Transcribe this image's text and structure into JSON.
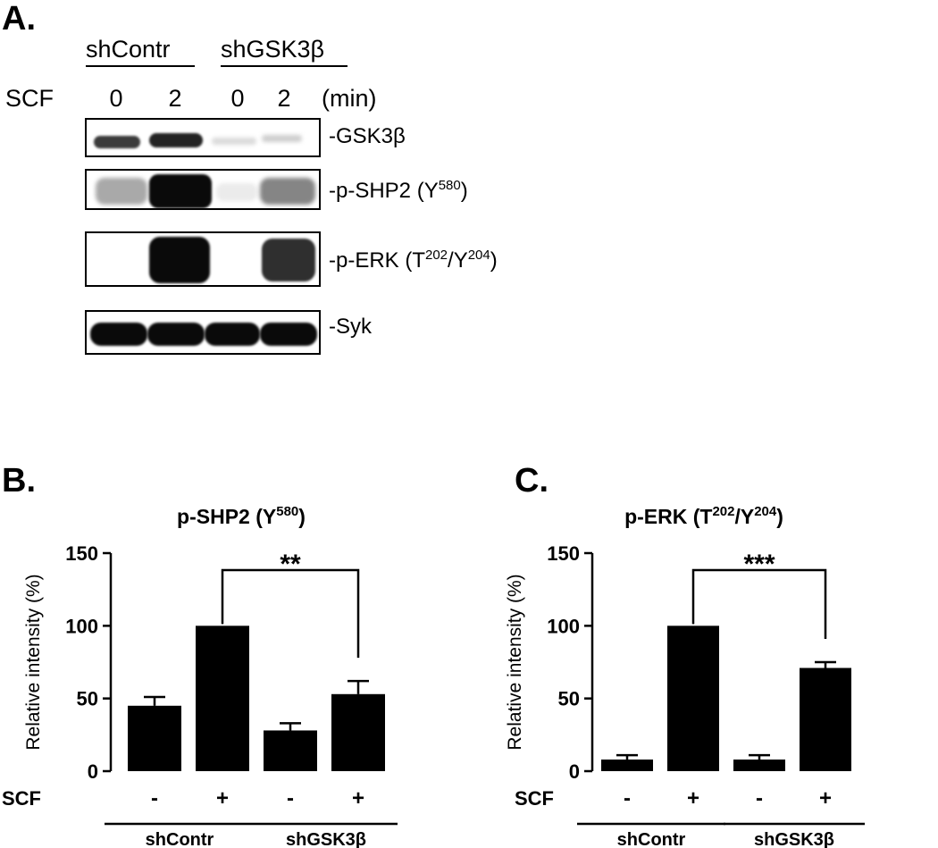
{
  "panel_a": {
    "letter": "A.",
    "groups": [
      "shContr",
      "shGSK3β"
    ],
    "row_label": "SCF",
    "lanes": [
      "0",
      "2",
      "0",
      "2"
    ],
    "unit": "(min)",
    "blots": [
      {
        "label": "-GSK3β",
        "lane_intensity": [
          0.8,
          0.9,
          0.15,
          0.2
        ]
      },
      {
        "label_main": "-p-SHP2 (Y",
        "label_sup": "580",
        "label_end": ")",
        "lane_intensity": [
          0.35,
          1.0,
          0.08,
          0.5
        ]
      },
      {
        "label_main": "-p-ERK (T",
        "label_sup": "202",
        "label_mid": "/Y",
        "label_sup2": "204",
        "label_end": ")",
        "lane_intensity": [
          0.0,
          1.0,
          0.0,
          0.85
        ]
      },
      {
        "label": "-Syk",
        "lane_intensity": [
          1.0,
          1.0,
          1.0,
          1.0
        ]
      }
    ]
  },
  "chart_data": [
    {
      "panel": "B.",
      "type": "bar",
      "title_main": "p-SHP2 (Y",
      "title_sup": "580",
      "title_end": ")",
      "ylabel": "Relative intensity (%)",
      "ylim": [
        0,
        150
      ],
      "yticks": [
        "0",
        "50",
        "100",
        "150"
      ],
      "categories": [
        "-",
        "+",
        "-",
        "+"
      ],
      "row_label": "SCF",
      "groups": [
        "shContr",
        "shGSK3β"
      ],
      "values": [
        45,
        100,
        28,
        53
      ],
      "errors": [
        6,
        0,
        5,
        9
      ],
      "significance": {
        "from": 1,
        "to": 3,
        "label": "**"
      }
    },
    {
      "panel": "C.",
      "type": "bar",
      "title_main": "p-ERK (T",
      "title_sup": "202",
      "title_mid": "/Y",
      "title_sup2": "204",
      "title_end": ")",
      "ylabel": "Relative intensity (%)",
      "ylim": [
        0,
        150
      ],
      "yticks": [
        "0",
        "50",
        "100",
        "150"
      ],
      "categories": [
        "-",
        "+",
        "-",
        "+"
      ],
      "row_label": "SCF",
      "groups": [
        "shContr",
        "shGSK3β"
      ],
      "values": [
        8,
        100,
        8,
        71
      ],
      "errors": [
        3,
        0,
        3,
        4
      ],
      "significance": {
        "from": 1,
        "to": 3,
        "label": "***"
      }
    }
  ]
}
